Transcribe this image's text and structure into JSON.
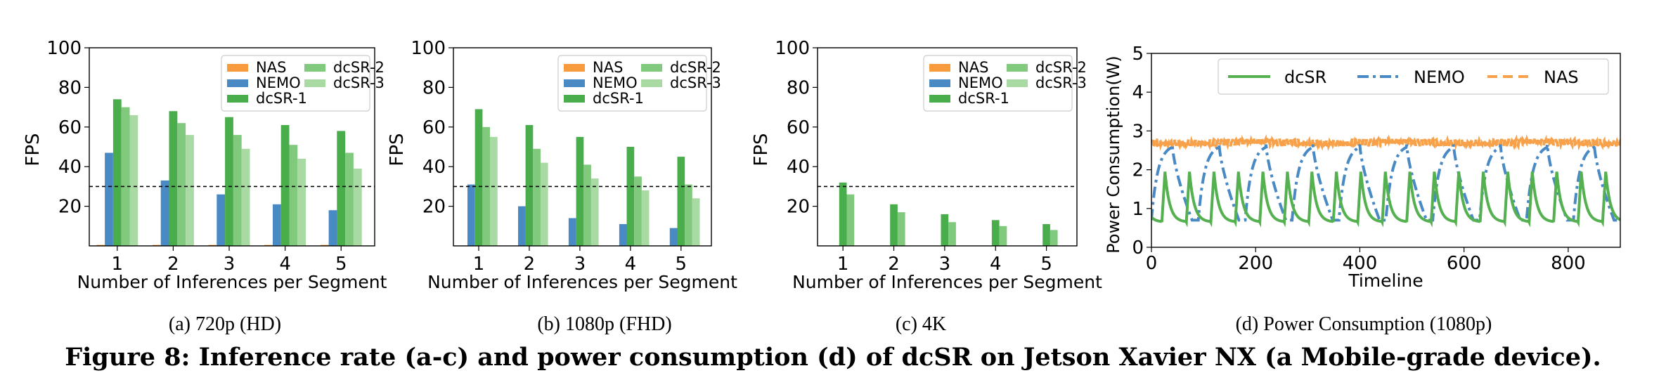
{
  "colors": {
    "nas": "#f79b3c",
    "nemo": "#4a8ac4",
    "dcsr1": "#4aad4c",
    "dcsr2": "#80c97d",
    "dcsr3": "#a9daa3",
    "line_dcsr": "#55b04f",
    "line_nemo": "#4a8ac4",
    "line_nas": "#f7a14a"
  },
  "chart_data": [
    {
      "type": "bar",
      "ylabel": "FPS",
      "xlabel": "Number of Inferences per Segment",
      "categories": [
        "1",
        "2",
        "3",
        "4",
        "5"
      ],
      "ylim": [
        0,
        100
      ],
      "yticks": [
        "20",
        "40",
        "60",
        "80",
        "100"
      ],
      "reference_line": 30,
      "legend": "top-right",
      "series": [
        {
          "name": "NAS",
          "values": [
            0.5,
            0.5,
            0.5,
            0.5,
            0.5
          ]
        },
        {
          "name": "NEMO",
          "values": [
            47,
            33,
            26,
            21,
            18
          ]
        },
        {
          "name": "dcSR-1",
          "values": [
            74,
            68,
            65,
            61,
            58
          ]
        },
        {
          "name": "dcSR-2",
          "values": [
            70,
            62,
            56,
            51,
            47
          ]
        },
        {
          "name": "dcSR-3",
          "values": [
            66,
            56,
            49,
            44,
            39
          ]
        }
      ],
      "caption": "(a)  720p (HD)"
    },
    {
      "type": "bar",
      "ylabel": "FPS",
      "xlabel": "Number of Inferences per Segment",
      "categories": [
        "1",
        "2",
        "3",
        "4",
        "5"
      ],
      "ylim": [
        0,
        100
      ],
      "yticks": [
        "20",
        "40",
        "60",
        "80",
        "100"
      ],
      "reference_line": 30,
      "legend": "top-right",
      "series": [
        {
          "name": "NAS",
          "values": [
            0,
            0,
            0,
            0,
            0
          ]
        },
        {
          "name": "NEMO",
          "values": [
            31,
            20,
            14,
            11,
            9
          ]
        },
        {
          "name": "dcSR-1",
          "values": [
            69,
            61,
            55,
            50,
            45
          ]
        },
        {
          "name": "dcSR-2",
          "values": [
            60,
            49,
            41,
            35,
            31
          ]
        },
        {
          "name": "dcSR-3",
          "values": [
            55,
            42,
            34,
            28,
            24
          ]
        }
      ],
      "caption": "(b)  1080p (FHD)"
    },
    {
      "type": "bar",
      "ylabel": "FPS",
      "xlabel": "Number of Inferences per Segment",
      "categories": [
        "1",
        "2",
        "3",
        "4",
        "5"
      ],
      "ylim": [
        0,
        100
      ],
      "yticks": [
        "20",
        "40",
        "60",
        "80",
        "100"
      ],
      "reference_line": 30,
      "legend": "top-right",
      "series": [
        {
          "name": "NAS",
          "values": [
            0,
            0,
            0,
            0,
            0
          ]
        },
        {
          "name": "NEMO",
          "values": [
            0,
            0,
            0,
            0,
            0
          ]
        },
        {
          "name": "dcSR-1",
          "values": [
            32,
            21,
            16,
            13,
            11
          ]
        },
        {
          "name": "dcSR-2",
          "values": [
            26,
            17,
            12,
            10,
            8
          ]
        },
        {
          "name": "dcSR-3",
          "values": [
            0,
            0,
            0,
            0,
            0
          ]
        }
      ],
      "caption": "(c)  4K"
    },
    {
      "type": "line",
      "ylabel": "Power Consumption(W)",
      "xlabel": "Timeline",
      "xlim": [
        0,
        900
      ],
      "ylim": [
        0,
        5
      ],
      "xticks": [
        "0",
        "200",
        "400",
        "600",
        "800"
      ],
      "yticks": [
        "0",
        "1",
        "2",
        "3",
        "4",
        "5"
      ],
      "legend": "top",
      "series": [
        {
          "name": "dcSR",
          "style": "solid",
          "pattern": "periodic spikes",
          "baseline": 0.65,
          "peak": 1.95,
          "period": 47,
          "phase": 20
        },
        {
          "name": "NEMO",
          "style": "dashdot",
          "pattern": "periodic dips",
          "high": 2.65,
          "low": 0.7,
          "period": 90,
          "phase": 40
        },
        {
          "name": "NAS",
          "style": "dashed",
          "pattern": "noisy flat",
          "mean": 2.7,
          "amplitude": 0.1
        }
      ],
      "caption": "(d)  Power Consumption (1080p)"
    }
  ],
  "figure_caption": "Figure 8: Inference rate (a-c) and power consumption (d) of dcSR on Jetson Xavier NX (a Mobile-grade device)."
}
